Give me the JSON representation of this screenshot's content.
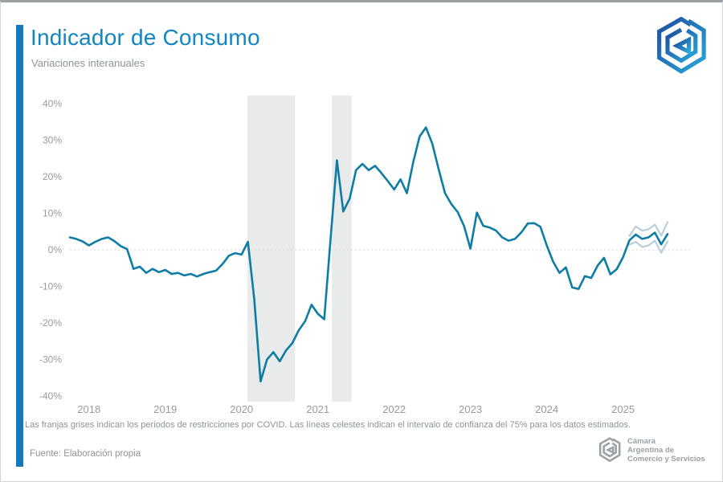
{
  "header": {
    "title": "Indicador de Consumo",
    "subtitle": "Variaciones interanuales"
  },
  "footer": {
    "note": "Las franjas grises indican los periodos de restricciones por COVID. Las líneas celestes indican el intervalo de confianza del 75% para los datos estimados.",
    "source": "Fuente: Elaboración propia",
    "org": {
      "line1": "Cámara",
      "line2": "Argentina de",
      "line3": "Comercio y Servicios"
    }
  },
  "colors": {
    "accent_bar": "#1478bd",
    "title": "#1186c3",
    "muted_text": "#8d939a",
    "axis_label": "#969ba0",
    "main_line": "#0f7da3",
    "ci_line": "#b9cfdc",
    "covid_band": "#e9eaea",
    "zero_line": "#d4d7d9",
    "logo_blue_dark": "#1d4e9e",
    "logo_blue_light": "#2aa8dc",
    "logo_gray": "#9ba1a7"
  },
  "chart_data": {
    "type": "line",
    "title": "Indicador de Consumo",
    "subtitle": "Variaciones interanuales",
    "unit": "percent, year-over-year variation, monthly",
    "ylim": [
      -40,
      40
    ],
    "grid": "zero-line-only",
    "legend": "none",
    "y_tick_values": [
      40,
      30,
      20,
      10,
      0,
      -10,
      -20,
      -30,
      -40
    ],
    "y_tick_labels": [
      "40%",
      "30%",
      "20%",
      "10%",
      "0%",
      "-10%",
      "-20%",
      "-30%",
      "-40%"
    ],
    "x_tick_labels": [
      "2018",
      "2019",
      "2020",
      "2021",
      "2022",
      "2023",
      "2024",
      "2025"
    ],
    "x_tick_indices": [
      3,
      15,
      27,
      39,
      51,
      63,
      75,
      87
    ],
    "series": [
      {
        "name": "indicador_de_consumo",
        "start_index": 0,
        "values": [
          3.4,
          3.0,
          2.3,
          1.2,
          2.2,
          3.0,
          3.4,
          2.4,
          1.0,
          0.2,
          -5.2,
          -4.6,
          -6.3,
          -5.2,
          -6.1,
          -5.5,
          -6.6,
          -6.3,
          -7.0,
          -6.6,
          -7.3,
          -6.6,
          -6.1,
          -5.7,
          -3.9,
          -1.6,
          -0.9,
          -1.3,
          2.2,
          -13.5,
          -36.0,
          -30.0,
          -28.0,
          -30.5,
          -27.5,
          -25.5,
          -22.0,
          -19.5,
          -15.0,
          -17.5,
          -19.0,
          3.0,
          24.5,
          10.5,
          14.0,
          21.8,
          23.5,
          21.8,
          23.0,
          21.0,
          18.8,
          16.5,
          19.3,
          15.5,
          24.0,
          31.0,
          33.5,
          29.0,
          22.0,
          15.5,
          12.5,
          10.3,
          6.5,
          0.3,
          10.2,
          6.6,
          6.1,
          5.3,
          3.4,
          2.5,
          3.0,
          4.8,
          7.2,
          7.3,
          6.3,
          1.2,
          -3.2,
          -6.3,
          -4.8,
          -10.3,
          -10.7,
          -7.2,
          -7.7,
          -4.3,
          -2.2,
          -6.7,
          -5.3,
          -2.0,
          2.6,
          4.2,
          3.0,
          3.4,
          4.7,
          1.5,
          4.3
        ]
      },
      {
        "name": "intervalo_confianza_75_superior",
        "start_index": 88,
        "values": [
          3.8,
          6.4,
          5.3,
          5.6,
          6.9,
          3.9,
          7.6
        ]
      },
      {
        "name": "intervalo_confianza_75_inferior",
        "start_index": 88,
        "values": [
          1.4,
          2.2,
          0.8,
          1.2,
          2.5,
          -0.8,
          2.3
        ]
      }
    ],
    "covid_restriction_bands": [
      {
        "start_index": 27.9,
        "end_index": 35.4
      },
      {
        "start_index": 41.2,
        "end_index": 44.3
      }
    ]
  }
}
